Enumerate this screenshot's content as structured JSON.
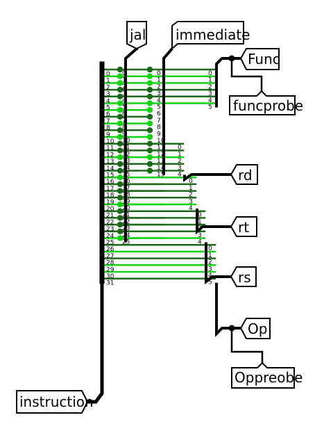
{
  "colors": {
    "wire_on": "#12d412",
    "wire_off": "#1a6a1a",
    "dot_on": "#12d412",
    "dot_off": "#1a6a1a",
    "bus": "#000000"
  },
  "pins": {
    "instruction": "instruction",
    "jal": "jal",
    "immediate": "immediate",
    "func": "Func",
    "funcprobe": "funcprobe",
    "rd": "rd",
    "rt": "rt",
    "rs": "rs",
    "op": "Op",
    "opprobe": "Oppreobe"
  },
  "instruction_bits": {
    "labels": [
      "0",
      "1",
      "2",
      "3",
      "4",
      "5",
      "6",
      "7",
      "8",
      "9",
      "10",
      "11",
      "12",
      "13",
      "14",
      "15",
      "16",
      "17",
      "18",
      "19",
      "20",
      "21",
      "22",
      "23",
      "24",
      "25",
      "26",
      "27",
      "28",
      "29",
      "30",
      "31"
    ],
    "states": [
      0,
      1,
      1,
      0,
      0,
      1,
      1,
      0,
      1,
      0,
      1,
      0,
      0,
      1,
      0,
      0,
      1,
      0,
      0,
      0,
      1,
      0,
      0,
      0,
      0,
      1,
      0,
      1,
      0,
      1,
      1,
      0
    ]
  },
  "jal_bits": {
    "labels": [
      "0",
      "1",
      "2",
      "3",
      "4",
      "5",
      "6",
      "7",
      "8",
      "9",
      "10",
      "11",
      "12",
      "13",
      "14",
      "15",
      "16",
      "17",
      "18",
      "19",
      "20",
      "21",
      "22",
      "23",
      "24",
      "25"
    ]
  },
  "immediate_bits": {
    "labels": [
      "0",
      "1",
      "2",
      "3",
      "4",
      "5",
      "6",
      "7",
      "8",
      "9",
      "10",
      "11",
      "12",
      "13",
      "14",
      "15"
    ]
  },
  "func_bits": {
    "labels": [
      "0",
      "1",
      "2",
      "3",
      "4",
      "5"
    ]
  },
  "rd_bits": {
    "labels": [
      "0",
      "1",
      "2",
      "3",
      "4"
    ]
  },
  "rt_bits": {
    "labels": [
      "0",
      "1",
      "2",
      "3",
      "4"
    ]
  },
  "rs_bits": {
    "labels": [
      "0",
      "1",
      "2",
      "3",
      "4"
    ]
  },
  "op_bits": {
    "labels": [
      "0",
      "1",
      "2",
      "3",
      "4",
      "5"
    ]
  }
}
